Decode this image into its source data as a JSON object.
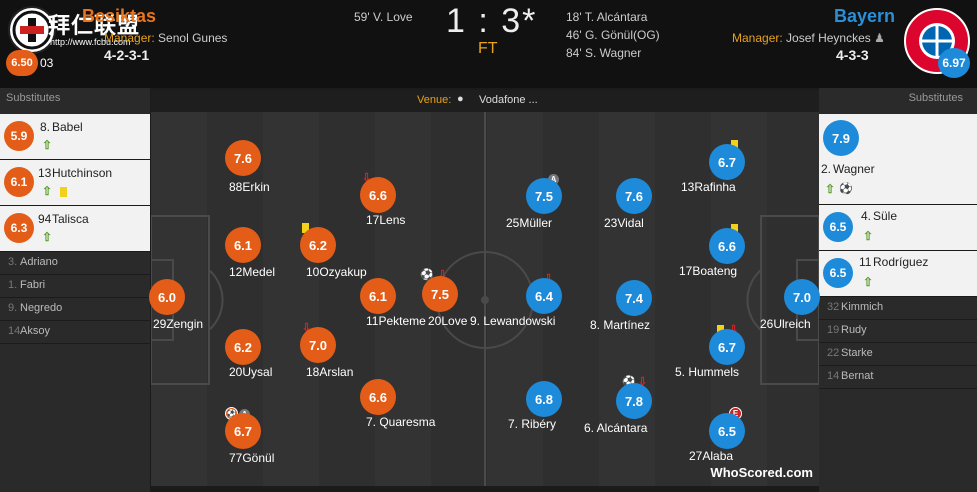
{
  "home": {
    "name": "Besiktas",
    "manager_label": "Manager:",
    "manager": "Senol Gunes",
    "formation": "4-2-3-1",
    "rating": "6.50",
    "rating_suffix": "03",
    "color": "#e35d18"
  },
  "away": {
    "name": "Bayern",
    "manager_label": "Manager:",
    "manager": "Josef Heynckes",
    "formation": "4-3-3",
    "rating": "6.97",
    "color": "#1d8bd9"
  },
  "score": "1 : 3*",
  "status": "FT",
  "events": {
    "home": [
      "59' V. Love"
    ],
    "away": [
      "18' T. Alcántara",
      "46' G. Gönül(OG)",
      "84' S. Wagner"
    ]
  },
  "watermark": {
    "title": "拜仁联盟",
    "url": "http://www.fcbu.com"
  },
  "venue": {
    "label": "Venue:",
    "value": "Vodafone ..."
  },
  "subs_title": "Substitutes",
  "home_subs_used": [
    {
      "rating": "5.9",
      "number": "8.",
      "name": "Babel"
    },
    {
      "rating": "6.1",
      "number": "13",
      "name": "Hutchinson"
    },
    {
      "rating": "6.3",
      "number": "94",
      "name": "Talisca"
    }
  ],
  "home_subs_unused": [
    {
      "number": "3.",
      "name": "Adriano"
    },
    {
      "number": "1.",
      "name": "Fabri"
    },
    {
      "number": "9.",
      "name": "Negredo"
    },
    {
      "number": "14",
      "name": "Aksoy"
    }
  ],
  "away_subs_used": [
    {
      "rating": "7.9",
      "number": "2.",
      "name": "Wagner"
    },
    {
      "rating": "6.5",
      "number": "4.",
      "name": "Süle"
    },
    {
      "rating": "6.5",
      "number": "11",
      "name": "Rodríguez"
    }
  ],
  "away_subs_unused": [
    {
      "number": "32",
      "name": "Kimmich"
    },
    {
      "number": "19",
      "name": "Rudy"
    },
    {
      "number": "22",
      "name": "Starke"
    },
    {
      "number": "14",
      "name": "Bernat"
    }
  ],
  "home_players": [
    {
      "rating": "6.0",
      "label": "29Zengin"
    },
    {
      "rating": "7.6",
      "label": "88Erkin"
    },
    {
      "rating": "6.1",
      "label": "12Medel"
    },
    {
      "rating": "6.2",
      "label": "20Uysal"
    },
    {
      "rating": "6.7",
      "label": "77Gönül"
    },
    {
      "rating": "6.2",
      "label": "10Ozyakup"
    },
    {
      "rating": "7.0",
      "label": "18Arslan"
    },
    {
      "rating": "6.6",
      "label": "17Lens"
    },
    {
      "rating": "6.1",
      "label": "11Pekteme"
    },
    {
      "rating": "6.6",
      "label": "7. Quaresma"
    },
    {
      "rating": "7.5",
      "label": "20Love"
    }
  ],
  "away_players": [
    {
      "rating": "7.0",
      "label": "26Ulreich"
    },
    {
      "rating": "6.7",
      "label": "13Rafinha"
    },
    {
      "rating": "6.6",
      "label": "17Boateng"
    },
    {
      "rating": "6.7",
      "label": "5. Hummels"
    },
    {
      "rating": "6.5",
      "label": "27Alaba"
    },
    {
      "rating": "7.6",
      "label": "23Vidal"
    },
    {
      "rating": "7.4",
      "label": "8. Martínez"
    },
    {
      "rating": "7.8",
      "label": "6. Alcántara"
    },
    {
      "rating": "7.5",
      "label": "25Müller"
    },
    {
      "rating": "6.4",
      "label": "9. Lewandowski"
    },
    {
      "rating": "6.8",
      "label": "7. Ribéry"
    }
  ],
  "icons": {
    "sub_in": "green-up-arrow",
    "sub_out": "red-down-arrow",
    "goal": "ball",
    "yellow": "yellow-card",
    "assist": "A",
    "own_goal_badge": "E"
  },
  "brand": "WhoScored.com"
}
